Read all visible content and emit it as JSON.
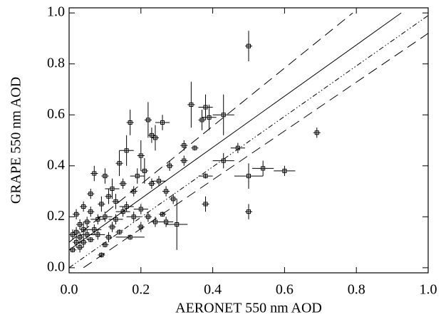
{
  "chart_data": {
    "type": "scatter",
    "x_label": "AERONET 550 nm AOD",
    "y_label": "GRAPE 550 nm AOD",
    "xlim": [
      0,
      1
    ],
    "ylim": [
      -0.02,
      1.02
    ],
    "xticks": [
      {
        "value": 0,
        "label": "0.0"
      },
      {
        "value": 0.2,
        "label": "0.2"
      },
      {
        "value": 0.4,
        "label": "0.4"
      },
      {
        "value": 0.6,
        "label": "0.6"
      },
      {
        "value": 0.8,
        "label": "0.8"
      },
      {
        "value": 1,
        "label": "1.0"
      }
    ],
    "yticks": [
      {
        "value": 0,
        "label": "0.0"
      },
      {
        "value": 0.2,
        "label": "0.2"
      },
      {
        "value": 0.4,
        "label": "0.4"
      },
      {
        "value": 0.6,
        "label": "0.6"
      },
      {
        "value": 0.8,
        "label": "0.8"
      },
      {
        "value": 1,
        "label": "1.0"
      }
    ],
    "color": "#000000",
    "x": [
      0.5,
      0.69,
      0.43,
      0.38,
      0.39,
      0.34,
      0.37,
      0.5,
      0.54,
      0.6,
      0.5,
      0.47,
      0.43,
      0.38,
      0.38,
      0.35,
      0.32,
      0.32,
      0.3,
      0.27,
      0.28,
      0.29,
      0.27,
      0.26,
      0.23,
      0.24,
      0.22,
      0.25,
      0.23,
      0.21,
      0.2,
      0.19,
      0.17,
      0.16,
      0.14,
      0.12,
      0.13,
      0.15,
      0.17,
      0.18,
      0.2,
      0.22,
      0.24,
      0.1,
      0.11,
      0.1,
      0.09,
      0.08,
      0.07,
      0.07,
      0.06,
      0.05,
      0.05,
      0.04,
      0.04,
      0.03,
      0.03,
      0.02,
      0.02,
      0.02,
      0.01,
      0.01,
      0.06,
      0.08,
      0.09,
      0.12,
      0.13,
      0.14,
      0.16,
      0.11,
      0.15,
      0.18,
      0.26,
      0.2,
      0.06,
      0.04,
      0.03,
      0.1
    ],
    "y": [
      0.87,
      0.53,
      0.6,
      0.63,
      0.59,
      0.64,
      0.58,
      0.36,
      0.39,
      0.38,
      0.22,
      0.47,
      0.42,
      0.36,
      0.25,
      0.47,
      0.48,
      0.42,
      0.17,
      0.18,
      0.4,
      0.27,
      0.3,
      0.57,
      0.52,
      0.51,
      0.58,
      0.34,
      0.33,
      0.38,
      0.44,
      0.36,
      0.57,
      0.46,
      0.41,
      0.31,
      0.26,
      0.22,
      0.12,
      0.2,
      0.23,
      0.2,
      0.18,
      0.36,
      0.28,
      0.2,
      0.25,
      0.19,
      0.37,
      0.15,
      0.22,
      0.13,
      0.18,
      0.1,
      0.15,
      0.12,
      0.08,
      0.14,
      0.21,
      0.1,
      0.13,
      0.07,
      0.11,
      0.13,
      0.05,
      0.16,
      0.19,
      0.14,
      0.24,
      0.12,
      0.33,
      0.3,
      0.21,
      0.16,
      0.29,
      0.24,
      0.17,
      0.09
    ],
    "xerr": [
      0.01,
      0.01,
      0.03,
      0.02,
      0.02,
      0.01,
      0.01,
      0.04,
      0.03,
      0.03,
      0.01,
      0.02,
      0.03,
      0.02,
      0.01,
      0.01,
      0.01,
      0.01,
      0.03,
      0.02,
      0.01,
      0.01,
      0.01,
      0.02,
      0.01,
      0.01,
      0.01,
      0.02,
      0.01,
      0.01,
      0.01,
      0.02,
      0.01,
      0.02,
      0.01,
      0.02,
      0.01,
      0.02,
      0.04,
      0.02,
      0.02,
      0.01,
      0.01,
      0.01,
      0.01,
      0.02,
      0.01,
      0.02,
      0.01,
      0.02,
      0.01,
      0.02,
      0.01,
      0.01,
      0.01,
      0.01,
      0.01,
      0.01,
      0.01,
      0.01,
      0.01,
      0.01,
      0.01,
      0.02,
      0.01,
      0.01,
      0.02,
      0.01,
      0.02,
      0.01,
      0.01,
      0.01,
      0.01,
      0.01,
      0.01,
      0.01,
      0.01,
      0.01
    ],
    "yerr": [
      0.06,
      0.02,
      0.08,
      0.05,
      0.05,
      0.09,
      0.04,
      0.05,
      0.03,
      0.02,
      0.03,
      0.02,
      0.03,
      0.01,
      0.03,
      0.01,
      0.02,
      0.02,
      0.1,
      0.02,
      0.02,
      0.02,
      0.02,
      0.03,
      0.03,
      0.05,
      0.07,
      0.02,
      0.02,
      0.05,
      0.06,
      0.03,
      0.05,
      0.06,
      0.05,
      0.04,
      0.03,
      0.02,
      0.01,
      0.02,
      0.02,
      0.02,
      0.02,
      0.03,
      0.03,
      0.02,
      0.03,
      0.02,
      0.03,
      0.02,
      0.02,
      0.02,
      0.02,
      0.02,
      0.03,
      0.02,
      0.02,
      0.02,
      0.02,
      0.02,
      0.02,
      0.01,
      0.01,
      0.02,
      0.01,
      0.02,
      0.02,
      0.01,
      0.02,
      0.02,
      0.02,
      0.02,
      0.01,
      0.02,
      0.02,
      0.02,
      0.02,
      0.01
    ],
    "lines": [
      {
        "style": "dashed",
        "x": [
          0,
          0.79
        ],
        "y": [
          0.1,
          1.0
        ]
      },
      {
        "style": "solid",
        "x": [
          0,
          0.925
        ],
        "y": [
          0.07,
          1.0
        ]
      },
      {
        "style": "dash-dot-dot",
        "x": [
          0,
          1
        ],
        "y": [
          0.0,
          0.99
        ]
      },
      {
        "style": "dashed",
        "x": [
          0.04,
          1
        ],
        "y": [
          0.0,
          0.92
        ]
      }
    ]
  }
}
